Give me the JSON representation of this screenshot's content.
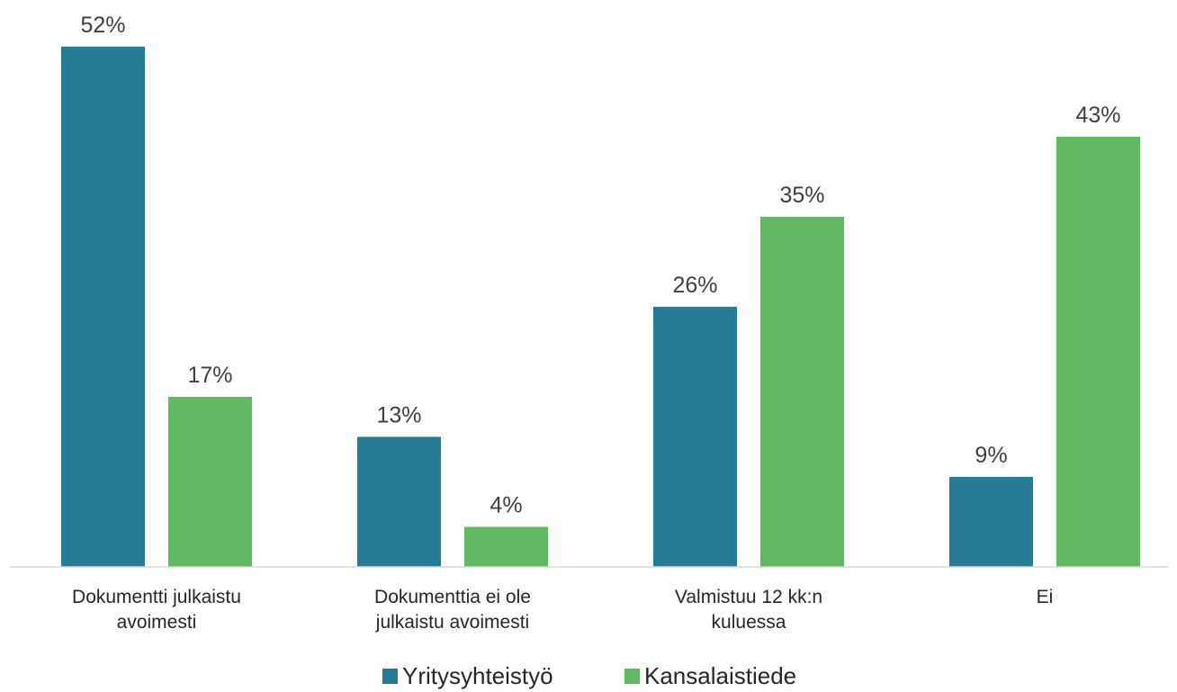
{
  "chart_data": {
    "type": "bar",
    "categories": [
      "Dokumentti julkaistu avoimesti",
      "Dokumenttia ei ole julkaistu avoimesti",
      "Valmistuu 12 kk:n kuluessa",
      "Ei"
    ],
    "series": [
      {
        "name": "Yritysyhteistyö",
        "color": "#277b94",
        "values": [
          52,
          13,
          26,
          9
        ],
        "value_labels": [
          "52%",
          "13%",
          "26%",
          "9%"
        ]
      },
      {
        "name": "Kansalaistiede",
        "color": "#63b963",
        "values": [
          17,
          4,
          35,
          43
        ],
        "value_labels": [
          "17%",
          "4%",
          "35%",
          "43%"
        ]
      }
    ],
    "legend": "bottom"
  }
}
